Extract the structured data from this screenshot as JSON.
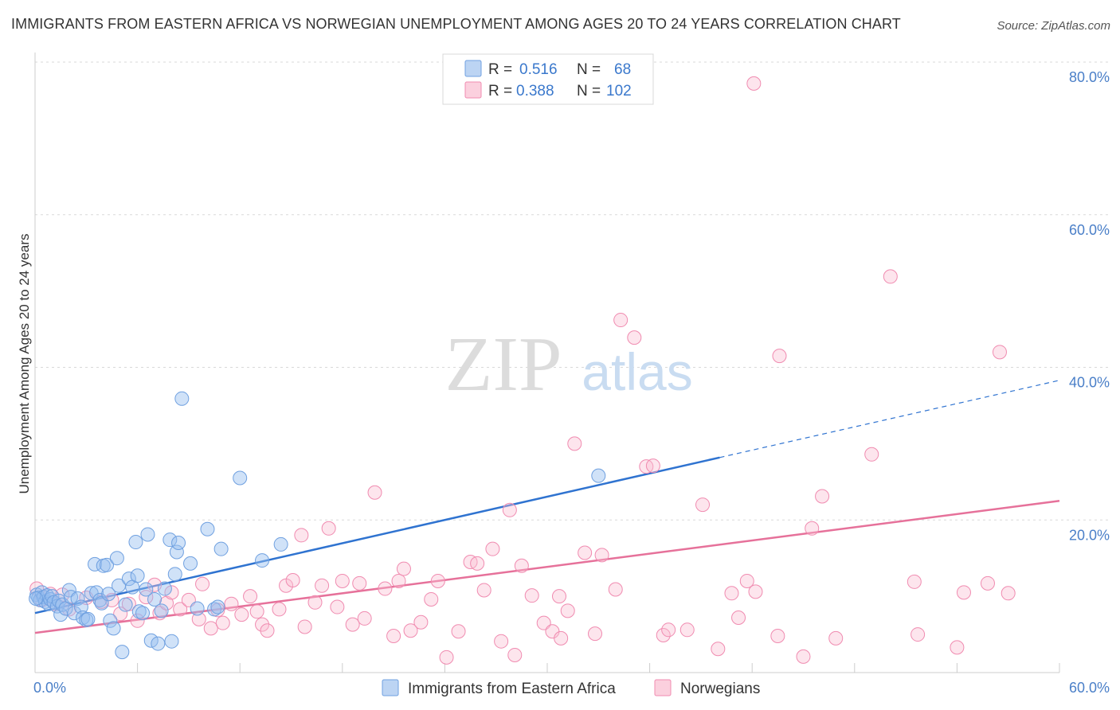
{
  "header": {
    "title": "IMMIGRANTS FROM EASTERN AFRICA VS NORWEGIAN UNEMPLOYMENT AMONG AGES 20 TO 24 YEARS CORRELATION CHART",
    "source": "Source: ZipAtlas.com"
  },
  "watermark": {
    "zip": "ZIP",
    "atlas": "atlas"
  },
  "legend": {
    "rows": [
      {
        "r_label": "R =",
        "r_value": "0.516",
        "n_label": "N =",
        "n_value": "68",
        "color": "#8ab4e8"
      },
      {
        "r_label": "R =",
        "r_value": "0.388",
        "n_label": "N =",
        "n_value": "102",
        "color": "#f4a6c0"
      }
    ]
  },
  "bottom_legend": [
    {
      "label": "Immigrants from Eastern Africa",
      "color": "#8ab4e8"
    },
    {
      "label": "Norwegians",
      "color": "#f4a6c0"
    }
  ],
  "chart_data": {
    "type": "scatter",
    "title": "IMMIGRANTS FROM EASTERN AFRICA VS NORWEGIAN UNEMPLOYMENT AMONG AGES 20 TO 24 YEARS CORRELATION CHART",
    "xlabel": "",
    "ylabel": "Unemployment Among Ages 20 to 24 years",
    "xlim": [
      0,
      60
    ],
    "ylim": [
      0,
      80
    ],
    "x_tick_labels": [
      "0.0%",
      "60.0%"
    ],
    "y_tick_labels": [
      "20.0%",
      "40.0%",
      "60.0%",
      "80.0%"
    ],
    "y_ticks": [
      20,
      40,
      60,
      80
    ],
    "grid": true,
    "legend_position": "top-center",
    "series": [
      {
        "name": "Immigrants from Eastern Africa",
        "color": "#6fa0e0",
        "points": [
          [
            0.1,
            10.2
          ],
          [
            0.2,
            9.8
          ],
          [
            0.3,
            9.5
          ],
          [
            0.4,
            10.5
          ],
          [
            0.5,
            9.9
          ],
          [
            0.6,
            9.3
          ],
          [
            0.7,
            10.1
          ],
          [
            0.8,
            9.0
          ],
          [
            0.9,
            9.6
          ],
          [
            1.0,
            10.0
          ],
          [
            1.1,
            9.2
          ],
          [
            1.3,
            8.7
          ],
          [
            1.4,
            9.4
          ],
          [
            1.5,
            7.6
          ],
          [
            1.6,
            8.9
          ],
          [
            1.8,
            8.4
          ],
          [
            2.0,
            10.8
          ],
          [
            2.1,
            9.9
          ],
          [
            2.3,
            7.8
          ],
          [
            2.5,
            9.7
          ],
          [
            2.7,
            8.6
          ],
          [
            2.8,
            7.2
          ],
          [
            3.0,
            6.9
          ],
          [
            3.1,
            7.0
          ],
          [
            3.3,
            10.4
          ],
          [
            3.5,
            14.2
          ],
          [
            3.6,
            10.5
          ],
          [
            3.8,
            9.5
          ],
          [
            3.9,
            9.1
          ],
          [
            4.0,
            14.0
          ],
          [
            4.2,
            14.1
          ],
          [
            4.3,
            10.3
          ],
          [
            4.4,
            6.8
          ],
          [
            4.6,
            5.8
          ],
          [
            4.8,
            15.0
          ],
          [
            4.9,
            11.4
          ],
          [
            5.1,
            2.7
          ],
          [
            5.3,
            8.9
          ],
          [
            5.5,
            12.3
          ],
          [
            5.7,
            11.2
          ],
          [
            5.9,
            17.1
          ],
          [
            6.0,
            12.7
          ],
          [
            6.1,
            8.0
          ],
          [
            6.3,
            7.8
          ],
          [
            6.5,
            10.9
          ],
          [
            6.6,
            18.1
          ],
          [
            6.8,
            4.2
          ],
          [
            7.0,
            9.6
          ],
          [
            7.2,
            3.8
          ],
          [
            7.4,
            8.1
          ],
          [
            7.6,
            11.0
          ],
          [
            7.9,
            17.4
          ],
          [
            8.0,
            4.1
          ],
          [
            8.2,
            12.9
          ],
          [
            8.3,
            15.8
          ],
          [
            8.4,
            17.0
          ],
          [
            8.6,
            35.9
          ],
          [
            9.1,
            14.3
          ],
          [
            9.5,
            8.4
          ],
          [
            10.1,
            18.8
          ],
          [
            10.5,
            8.3
          ],
          [
            10.7,
            8.6
          ],
          [
            10.9,
            16.2
          ],
          [
            12.0,
            25.5
          ],
          [
            13.3,
            14.7
          ],
          [
            14.4,
            16.8
          ],
          [
            33.0,
            25.8
          ],
          [
            0.05,
            9.7
          ]
        ]
      },
      {
        "name": "Norwegians",
        "color": "#f08bb0",
        "points": [
          [
            0.1,
            11.0
          ],
          [
            0.4,
            9.5
          ],
          [
            0.9,
            10.3
          ],
          [
            1.2,
            9.0
          ],
          [
            2.0,
            8.3
          ],
          [
            3.0,
            9.8
          ],
          [
            3.9,
            9.3
          ],
          [
            4.5,
            9.5
          ],
          [
            5.0,
            7.7
          ],
          [
            5.5,
            9.0
          ],
          [
            6.0,
            6.8
          ],
          [
            6.5,
            9.9
          ],
          [
            7.0,
            11.5
          ],
          [
            7.3,
            7.8
          ],
          [
            7.7,
            9.1
          ],
          [
            8.0,
            10.5
          ],
          [
            8.5,
            8.3
          ],
          [
            9.0,
            9.5
          ],
          [
            9.6,
            7.0
          ],
          [
            9.8,
            11.6
          ],
          [
            10.3,
            5.8
          ],
          [
            10.7,
            8.2
          ],
          [
            11.0,
            6.5
          ],
          [
            11.5,
            9.0
          ],
          [
            12.1,
            7.6
          ],
          [
            12.6,
            10.0
          ],
          [
            13.0,
            8.0
          ],
          [
            13.3,
            6.3
          ],
          [
            13.6,
            5.5
          ],
          [
            14.3,
            8.3
          ],
          [
            14.7,
            11.4
          ],
          [
            15.1,
            12.1
          ],
          [
            15.6,
            18.0
          ],
          [
            15.8,
            6.0
          ],
          [
            16.4,
            9.2
          ],
          [
            16.8,
            11.4
          ],
          [
            17.2,
            18.9
          ],
          [
            17.7,
            8.6
          ],
          [
            18.0,
            12.0
          ],
          [
            18.6,
            6.3
          ],
          [
            19.0,
            11.7
          ],
          [
            19.3,
            7.1
          ],
          [
            19.9,
            23.6
          ],
          [
            20.5,
            11.0
          ],
          [
            21.0,
            4.8
          ],
          [
            21.3,
            12.0
          ],
          [
            21.6,
            13.6
          ],
          [
            22.0,
            5.5
          ],
          [
            22.6,
            6.6
          ],
          [
            23.2,
            9.6
          ],
          [
            23.6,
            12.0
          ],
          [
            24.1,
            2.0
          ],
          [
            24.8,
            5.4
          ],
          [
            25.5,
            14.5
          ],
          [
            25.9,
            14.3
          ],
          [
            26.3,
            10.8
          ],
          [
            26.8,
            16.2
          ],
          [
            27.3,
            4.1
          ],
          [
            27.8,
            21.3
          ],
          [
            28.1,
            2.3
          ],
          [
            28.5,
            14.0
          ],
          [
            29.1,
            10.1
          ],
          [
            29.8,
            6.5
          ],
          [
            30.3,
            5.4
          ],
          [
            30.8,
            4.5
          ],
          [
            31.2,
            8.1
          ],
          [
            31.6,
            30.0
          ],
          [
            32.2,
            15.7
          ],
          [
            32.8,
            5.1
          ],
          [
            33.2,
            15.4
          ],
          [
            34.0,
            10.9
          ],
          [
            34.3,
            46.2
          ],
          [
            35.1,
            43.9
          ],
          [
            35.8,
            27.0
          ],
          [
            36.2,
            27.1
          ],
          [
            36.8,
            4.9
          ],
          [
            37.1,
            5.6
          ],
          [
            38.2,
            5.6
          ],
          [
            39.1,
            22.0
          ],
          [
            40.0,
            3.1
          ],
          [
            40.8,
            10.4
          ],
          [
            41.2,
            7.2
          ],
          [
            41.7,
            12.0
          ],
          [
            42.2,
            10.6
          ],
          [
            43.5,
            4.8
          ],
          [
            43.6,
            41.5
          ],
          [
            45.0,
            2.1
          ],
          [
            45.5,
            18.9
          ],
          [
            46.1,
            23.1
          ],
          [
            46.9,
            4.5
          ],
          [
            49.0,
            28.6
          ],
          [
            50.1,
            51.9
          ],
          [
            51.5,
            11.9
          ],
          [
            51.7,
            5.0
          ],
          [
            54.0,
            3.3
          ],
          [
            54.4,
            10.5
          ],
          [
            55.8,
            11.7
          ],
          [
            56.5,
            42.0
          ],
          [
            57.0,
            10.4
          ],
          [
            42.1,
            77.2
          ],
          [
            1.6,
            10.2
          ],
          [
            30.7,
            10.0
          ]
        ]
      }
    ],
    "trend_lines": [
      {
        "series": "Immigrants from Eastern Africa",
        "x_start": 0,
        "y_start": 7.8,
        "x_solid_end": 40.1,
        "x_dashed_end": 60,
        "y_dashed_end": 38.3,
        "color": "#2f73d0"
      },
      {
        "series": "Norwegians",
        "x_start": 0,
        "y_start": 5.2,
        "x_end": 60,
        "y_end": 22.5,
        "color": "#e6719a"
      }
    ]
  }
}
